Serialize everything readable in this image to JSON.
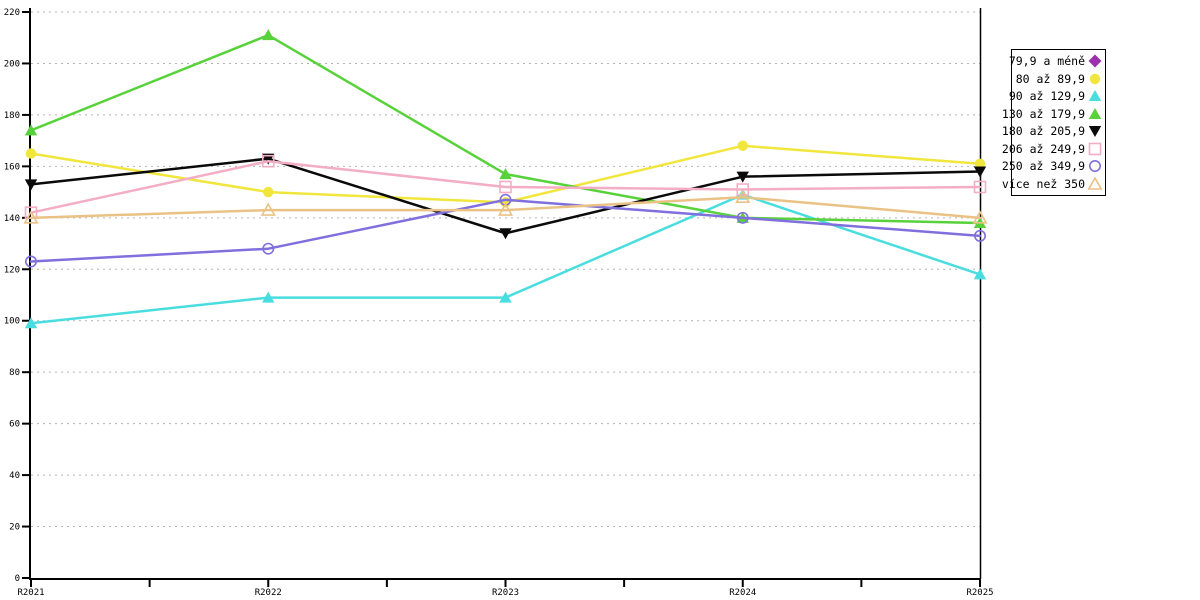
{
  "chart_data": {
    "type": "line",
    "title": "",
    "xlabel": "",
    "ylabel": "",
    "categories": [
      "R2021",
      "R2022",
      "R2023",
      "R2024",
      "R2025"
    ],
    "ylim": [
      0,
      220
    ],
    "ytick_step": 20,
    "ytick_labels": [
      "0",
      "20",
      "40",
      "60",
      "80",
      "100",
      "120",
      "140",
      "160",
      "180",
      "200",
      "220"
    ],
    "grid": "horizontal-dashed",
    "legend_position": "top-right-box",
    "colors": {
      "background": "#ffffff",
      "axis": "#000000",
      "gridline": "#b3b3b3"
    },
    "series": [
      {
        "name": "79,9 a méně",
        "color": "#9c2fae",
        "marker": "diamond",
        "filled": true,
        "values": []
      },
      {
        "name": "80 až 89,9",
        "color": "#f0e63c",
        "marker": "circle",
        "filled": true,
        "values": [
          165,
          150,
          146,
          168,
          161
        ]
      },
      {
        "name": "90 až 129,9",
        "color": "#4adde0",
        "marker": "triangle",
        "filled": true,
        "values": [
          99,
          109,
          109,
          149,
          118
        ]
      },
      {
        "name": "130 až 179,9",
        "color": "#58d23a",
        "marker": "triangle",
        "filled": true,
        "values": [
          174,
          211,
          157,
          140,
          138
        ]
      },
      {
        "name": "180 až 205,9",
        "color": "#0a0a0a",
        "marker": "triangle-down",
        "filled": true,
        "values": [
          153,
          163,
          134,
          156,
          158
        ]
      },
      {
        "name": "206 až 249,9",
        "color": "#f3adc4",
        "marker": "square",
        "filled": false,
        "values": [
          142,
          162,
          152,
          151,
          152
        ]
      },
      {
        "name": "250 až 349,9",
        "color": "#8070dd",
        "marker": "circle",
        "filled": false,
        "values": [
          123,
          128,
          147,
          140,
          133
        ]
      },
      {
        "name": "více než 350",
        "color": "#eac285",
        "marker": "triangle",
        "filled": false,
        "values": [
          140,
          143,
          143,
          148,
          140
        ]
      }
    ]
  }
}
